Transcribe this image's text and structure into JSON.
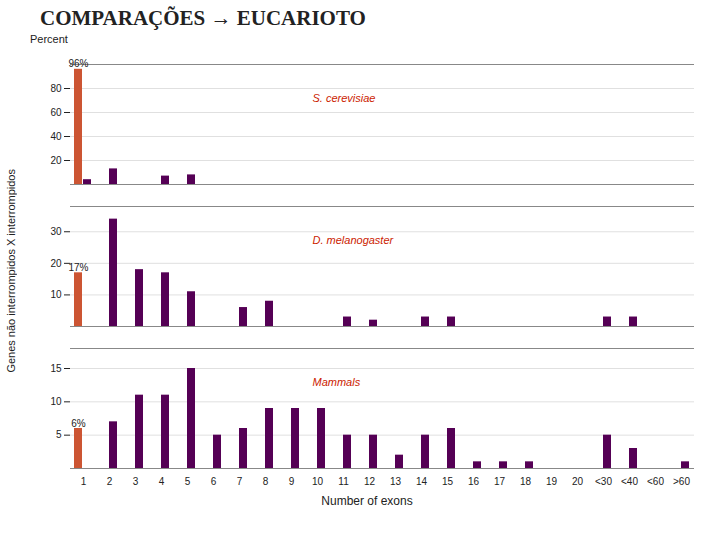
{
  "chart_data": [
    {
      "type": "bar",
      "title": "COMPARAÇÕES → EUCARIOTO",
      "ylabel": "Genes não interrompidos X interrompidos",
      "annotations": [
        "S. cerevisiae",
        "96%",
        "Percent"
      ],
      "categories": [
        "1",
        "2",
        "3",
        "4",
        "5",
        "6",
        "7",
        "8",
        "9",
        "10",
        "11",
        "12",
        "13",
        "14",
        "15",
        "16",
        "17",
        "18",
        "19",
        "20",
        "<30",
        "<40",
        "<60",
        ">60"
      ],
      "series": [
        {
          "color": "#cc5533",
          "values": [
            96,
            0,
            0,
            0,
            0,
            0,
            0,
            0,
            0,
            0,
            0,
            0,
            0,
            0,
            0,
            0,
            0,
            0,
            0,
            0,
            0,
            0,
            0,
            0
          ]
        },
        {
          "color": "#550055",
          "values": [
            4,
            13,
            0,
            7,
            8,
            0,
            0,
            0,
            0,
            0,
            0,
            0,
            0,
            0,
            0,
            0,
            0,
            0,
            0,
            0,
            0,
            0,
            0,
            0
          ]
        }
      ],
      "ylim": [
        0,
        100
      ],
      "yticks": [
        20,
        40,
        60,
        80
      ],
      "grid": true,
      "tick_labels": "y"
    },
    {
      "type": "bar",
      "annotations": [
        "D. melanogaster",
        "17%"
      ],
      "categories": [
        "1",
        "2",
        "3",
        "4",
        "5",
        "6",
        "7",
        "8",
        "9",
        "10",
        "11",
        "12",
        "13",
        "14",
        "15",
        "16",
        "17",
        "18",
        "19",
        "20",
        "<30",
        "<40",
        "<60",
        ">60"
      ],
      "series": [
        {
          "color": "#cc5533",
          "values": [
            17,
            0,
            0,
            0,
            0,
            0,
            0,
            0,
            0,
            0,
            0,
            0,
            0,
            0,
            0,
            0,
            0,
            0,
            0,
            0,
            0,
            0,
            0,
            0
          ]
        },
        {
          "color": "#550055",
          "values": [
            0,
            34,
            18,
            17,
            11,
            0,
            6,
            8,
            0,
            0,
            3,
            2,
            0,
            3,
            3,
            0,
            0,
            0,
            0,
            0,
            3,
            3,
            0,
            0
          ]
        }
      ],
      "ylim": [
        0,
        38
      ],
      "yticks": [
        10,
        20,
        30
      ],
      "grid": true,
      "tick_labels": "y"
    },
    {
      "type": "bar",
      "xlabel": "Number of exons",
      "annotations": [
        "Mammals",
        "6%"
      ],
      "categories": [
        "1",
        "2",
        "3",
        "4",
        "5",
        "6",
        "7",
        "8",
        "9",
        "10",
        "11",
        "12",
        "13",
        "14",
        "15",
        "16",
        "17",
        "18",
        "19",
        "20",
        "<30",
        "<40",
        "<60",
        ">60"
      ],
      "series": [
        {
          "color": "#cc5533",
          "values": [
            6,
            0,
            0,
            0,
            0,
            0,
            0,
            0,
            0,
            0,
            0,
            0,
            0,
            0,
            0,
            0,
            0,
            0,
            0,
            0,
            0,
            0,
            0,
            0
          ]
        },
        {
          "color": "#550055",
          "values": [
            0,
            7,
            11,
            11,
            15,
            5,
            6,
            9,
            9,
            9,
            5,
            5,
            2,
            5,
            6,
            1,
            1,
            1,
            0,
            0,
            5,
            3,
            0,
            1
          ]
        }
      ],
      "ylim": [
        0,
        18
      ],
      "yticks": [
        5,
        10,
        15
      ],
      "grid": true
    }
  ]
}
